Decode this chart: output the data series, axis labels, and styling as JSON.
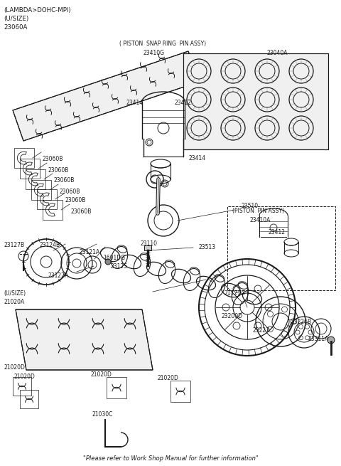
{
  "bg_color": "#ffffff",
  "line_color": "#1a1a1a",
  "fig_width": 4.8,
  "fig_height": 6.55,
  "dpi": 100,
  "footer": "\"Please refer to Work Shop Manual for further information\"",
  "header_line1": "(LAMBDA>DOHC-MPI)",
  "header_line2": "(U/SIZE)",
  "header_line3": "23060A",
  "snap_ring_header": "( PISTON  SNAP RING  PIN ASSY)",
  "snap_ring_id": "23410G",
  "rings_id": "23040A",
  "piston_pin_assy_title": "(PISTON  PIN ASSY)",
  "piston_pin_assy_id": "23410A"
}
